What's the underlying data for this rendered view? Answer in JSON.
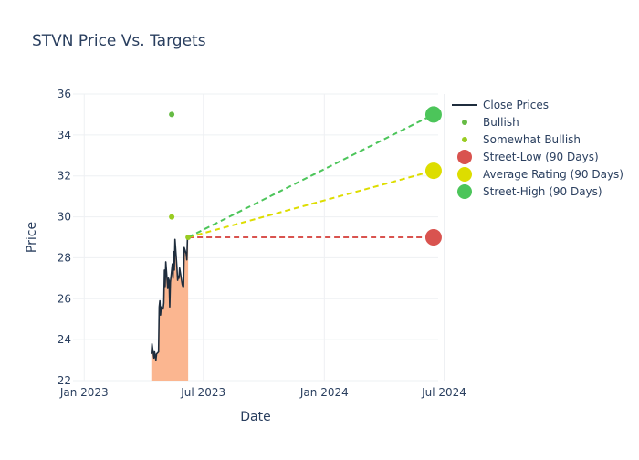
{
  "chart_data": {
    "type": "line",
    "title": "STVN Price Vs. Targets",
    "xlabel": "Date",
    "ylabel": "Price",
    "x_range": [
      "2022-12-15",
      "2024-06-22"
    ],
    "ylim": [
      22,
      36
    ],
    "y_ticks": [
      22,
      24,
      26,
      28,
      30,
      32,
      34,
      36
    ],
    "x_ticks": [
      {
        "date": "2023-01-01",
        "label": "Jan 2023"
      },
      {
        "date": "2023-07-01",
        "label": "Jul 2023"
      },
      {
        "date": "2024-01-01",
        "label": "Jan 2024"
      },
      {
        "date": "2024-07-01",
        "label": "Jul 2024"
      }
    ],
    "grid": true,
    "legend_position": "top-right",
    "close_prices": {
      "name": "Close Prices",
      "color": "#1f2d3d",
      "fill_color": "#fbb690",
      "points": [
        [
          "2023-04-13",
          23.3
        ],
        [
          "2023-04-14",
          23.8
        ],
        [
          "2023-04-17",
          23.1
        ],
        [
          "2023-04-18",
          23.4
        ],
        [
          "2023-04-19",
          23.2
        ],
        [
          "2023-04-20",
          23.0
        ],
        [
          "2023-04-21",
          23.3
        ],
        [
          "2023-04-24",
          23.4
        ],
        [
          "2023-04-25",
          25.6
        ],
        [
          "2023-04-26",
          25.9
        ],
        [
          "2023-04-27",
          25.2
        ],
        [
          "2023-04-28",
          25.6
        ],
        [
          "2023-05-01",
          25.5
        ],
        [
          "2023-05-02",
          25.8
        ],
        [
          "2023-05-03",
          27.4
        ],
        [
          "2023-05-04",
          26.6
        ],
        [
          "2023-05-05",
          27.8
        ],
        [
          "2023-05-08",
          26.5
        ],
        [
          "2023-05-09",
          27.0
        ],
        [
          "2023-05-10",
          26.9
        ],
        [
          "2023-05-11",
          25.6
        ],
        [
          "2023-05-12",
          26.8
        ],
        [
          "2023-05-15",
          27.7
        ],
        [
          "2023-05-16",
          27.0
        ],
        [
          "2023-05-17",
          28.3
        ],
        [
          "2023-05-18",
          27.4
        ],
        [
          "2023-05-19",
          28.9
        ],
        [
          "2023-05-22",
          27.5
        ],
        [
          "2023-05-23",
          26.9
        ],
        [
          "2023-05-24",
          27.1
        ],
        [
          "2023-05-25",
          27.0
        ],
        [
          "2023-05-26",
          27.5
        ],
        [
          "2023-05-30",
          26.7
        ],
        [
          "2023-05-31",
          26.6
        ],
        [
          "2023-06-01",
          26.6
        ],
        [
          "2023-06-02",
          28.5
        ],
        [
          "2023-06-05",
          28.2
        ],
        [
          "2023-06-06",
          27.9
        ],
        [
          "2023-06-07",
          29.0
        ],
        [
          "2023-06-08",
          29.0
        ]
      ]
    },
    "analyst_ratings": [
      {
        "name": "Bullish",
        "color": "#66bb44",
        "points": [
          [
            "2023-05-14",
            35
          ]
        ]
      },
      {
        "name": "Somewhat Bullish",
        "color": "#99cc22",
        "points": [
          [
            "2023-05-14",
            30
          ],
          [
            "2023-06-08",
            29
          ]
        ]
      }
    ],
    "targets": [
      {
        "name": "Street-Low (90 Days)",
        "color": "#d9534f",
        "start": [
          "2023-06-08",
          29.0
        ],
        "end": [
          "2024-06-15",
          29.0
        ]
      },
      {
        "name": "Average Rating (90 Days)",
        "color": "#dddd00",
        "start": [
          "2023-06-08",
          29.0
        ],
        "end": [
          "2024-06-15",
          32.25
        ]
      },
      {
        "name": "Street-High (90 Days)",
        "color": "#4cc55a",
        "start": [
          "2023-06-08",
          29.0
        ],
        "end": [
          "2024-06-15",
          35.0
        ]
      }
    ],
    "legend": [
      {
        "name": "Close Prices",
        "symbol": "line",
        "color": "#1f2d3d"
      },
      {
        "name": "Bullish",
        "symbol": "small-dot",
        "color": "#66bb44"
      },
      {
        "name": "Somewhat Bullish",
        "symbol": "small-dot",
        "color": "#99cc22"
      },
      {
        "name": "Street-Low (90 Days)",
        "symbol": "big-dot",
        "color": "#d9534f"
      },
      {
        "name": "Average Rating (90 Days)",
        "symbol": "big-dot",
        "color": "#dddd00"
      },
      {
        "name": "Street-High (90 Days)",
        "symbol": "big-dot",
        "color": "#4cc55a"
      }
    ]
  }
}
